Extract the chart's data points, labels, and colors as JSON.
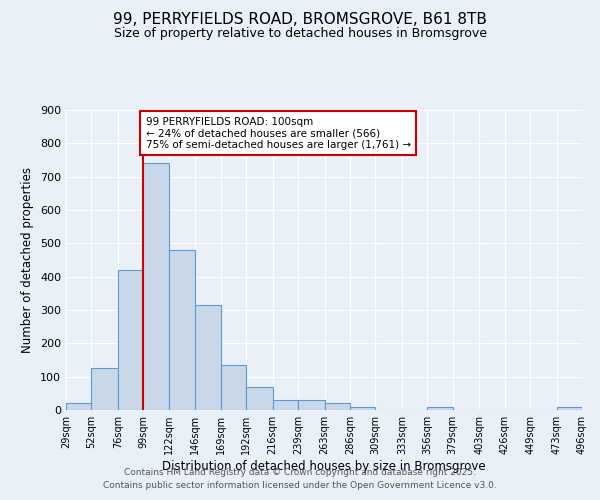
{
  "title": "99, PERRYFIELDS ROAD, BROMSGROVE, B61 8TB",
  "subtitle": "Size of property relative to detached houses in Bromsgrove",
  "xlabel": "Distribution of detached houses by size in Bromsgrove",
  "ylabel": "Number of detached properties",
  "bin_edges": [
    29,
    52,
    76,
    99,
    122,
    146,
    169,
    192,
    216,
    239,
    263,
    286,
    309,
    333,
    356,
    379,
    403,
    426,
    449,
    473,
    496
  ],
  "bar_heights": [
    20,
    125,
    420,
    740,
    480,
    315,
    135,
    68,
    30,
    30,
    20,
    10,
    0,
    0,
    8,
    0,
    0,
    0,
    0,
    8
  ],
  "bar_color": "#c8d8e8",
  "bar_edge_color": "#5b9bd5",
  "vline_x": 99,
  "vline_color": "#cc0000",
  "annotation_text": "99 PERRYFIELDS ROAD: 100sqm\n← 24% of detached houses are smaller (566)\n75% of semi-detached houses are larger (1,761) →",
  "annotation_box_color": "#ffffff",
  "annotation_box_edge": "#cc0000",
  "ylim": [
    0,
    900
  ],
  "yticks": [
    0,
    100,
    200,
    300,
    400,
    500,
    600,
    700,
    800,
    900
  ],
  "background_color": "#eaf0f8",
  "plot_bg_color": "#eaf0f8",
  "footer_line1": "Contains HM Land Registry data © Crown copyright and database right 2025.",
  "footer_line2": "Contains public sector information licensed under the Open Government Licence v3.0.",
  "title_fontsize": 11,
  "subtitle_fontsize": 9,
  "tick_label_fontsize": 7,
  "axis_label_fontsize": 8.5,
  "footer_fontsize": 6.5
}
